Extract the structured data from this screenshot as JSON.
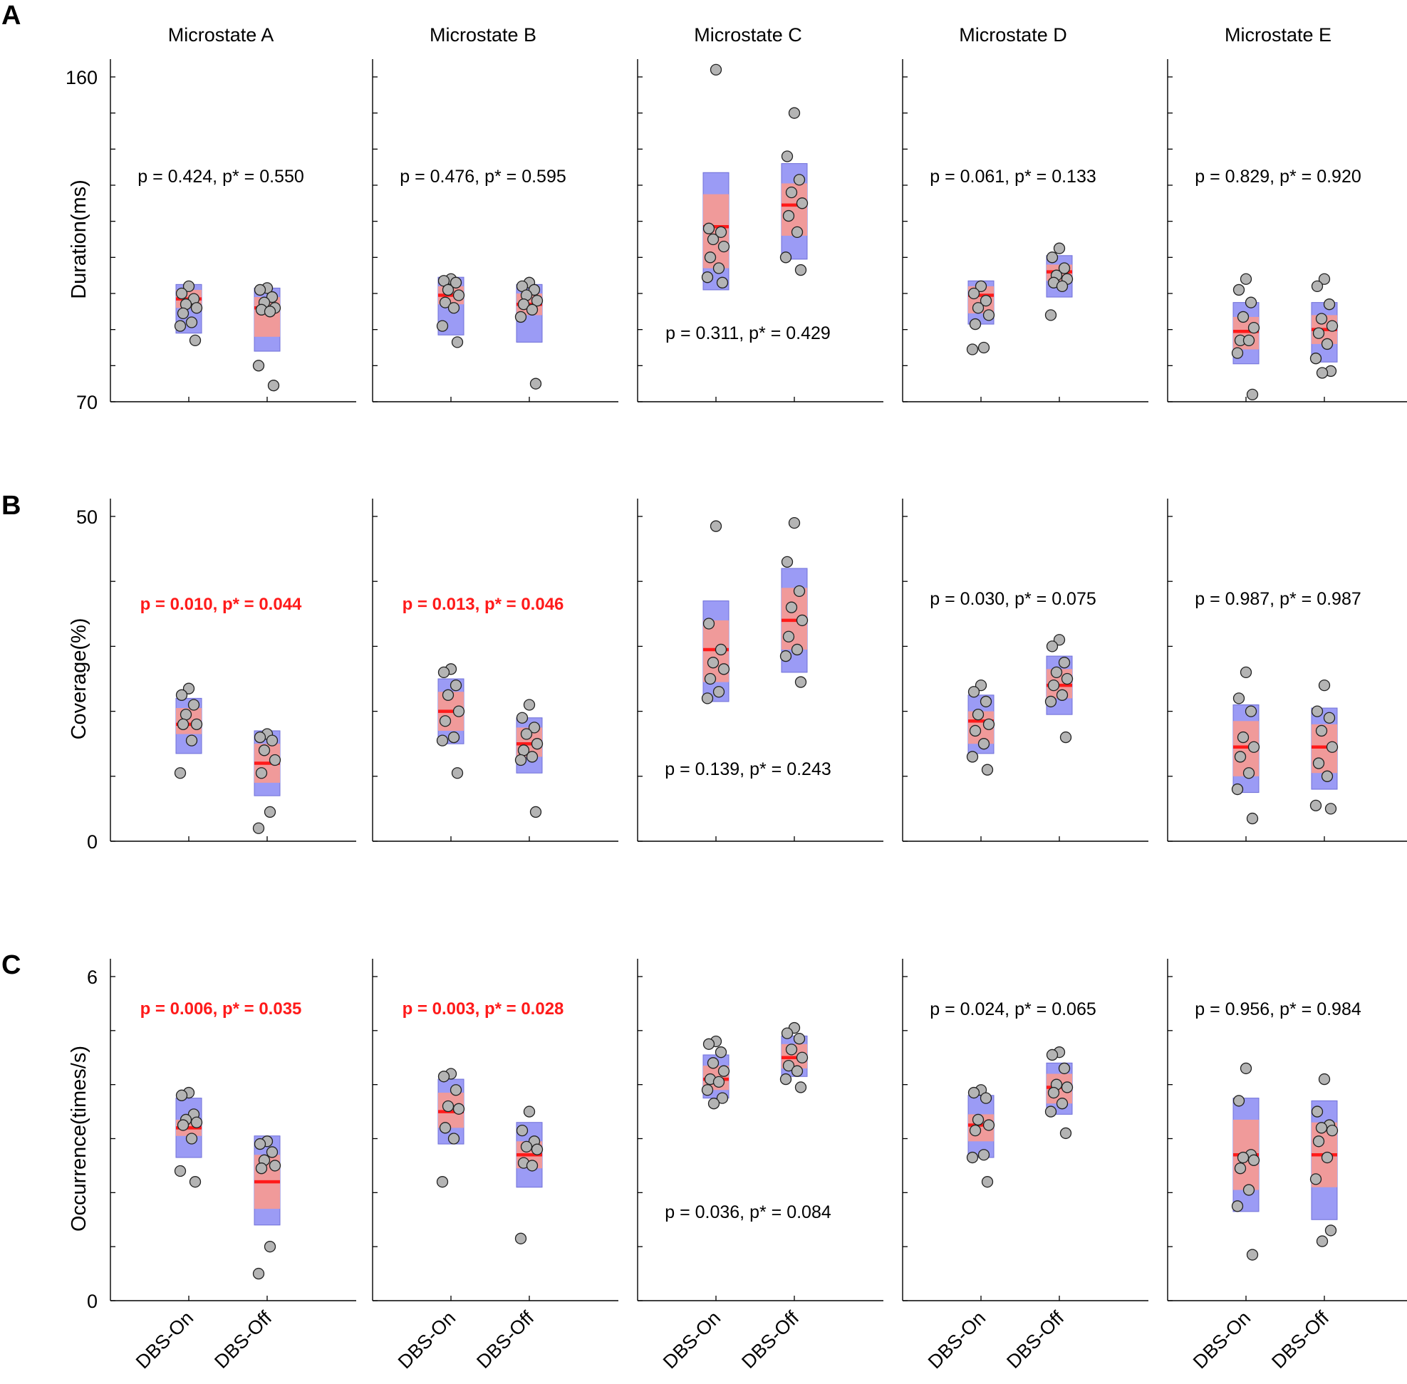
{
  "figure": {
    "column_titles": [
      "Microstate A",
      "Microstate B",
      "Microstate C",
      "Microstate D",
      "Microstate E"
    ],
    "group_labels": [
      "DBS-On",
      "DBS-Off"
    ],
    "colors": {
      "sd_band": "#9b9bf5",
      "ci_band": "#f09a9a",
      "mean_line": "#ff1a1a",
      "point_fill": "#b4b4b4",
      "significant_text": "#ff1a1a",
      "axis": "#000000"
    }
  },
  "chart_data": [
    {
      "type": "scatter",
      "panel": "A",
      "ylabel": "Duration(ms)",
      "ylim": [
        70,
        160
      ],
      "ytick_labels": [
        "70",
        "160"
      ],
      "ytick_count": 10,
      "xlabel": "",
      "microstates": [
        {
          "name": "Microstate A",
          "p_text": "p = 0.424, p* = 0.550",
          "significant": false,
          "p_pos": "upper",
          "groups": [
            {
              "label": "DBS-On",
              "mean": 98.5,
              "ci": [
                96,
                101
              ],
              "sd": [
                89,
                102.5
              ],
              "points": [
                102,
                100,
                98.5,
                97,
                96,
                94.5,
                92,
                91,
                87
              ]
            },
            {
              "label": "DBS-Off",
              "mean": 96,
              "ci": [
                88,
                99
              ],
              "sd": [
                84,
                101.5
              ],
              "points": [
                101.5,
                101,
                99,
                97.5,
                96,
                95.5,
                95,
                80,
                74.5
              ]
            }
          ]
        },
        {
          "name": "Microstate B",
          "p_text": "p = 0.476, p* = 0.595",
          "significant": false,
          "p_pos": "upper",
          "groups": [
            {
              "label": "DBS-On",
              "mean": 99.5,
              "ci": [
                97,
                102
              ],
              "sd": [
                88.5,
                104.5
              ],
              "points": [
                104,
                103.5,
                103,
                101,
                99.5,
                97.5,
                96,
                91,
                86.5
              ]
            },
            {
              "label": "DBS-Off",
              "mean": 97,
              "ci": [
                94,
                100
              ],
              "sd": [
                86.5,
                102.5
              ],
              "points": [
                103,
                102,
                101,
                99.5,
                98,
                97,
                95.5,
                93.5,
                75
              ]
            }
          ]
        },
        {
          "name": "Microstate C",
          "p_text": "p = 0.311, p* = 0.429",
          "significant": false,
          "p_pos": "lower",
          "groups": [
            {
              "label": "DBS-On",
              "mean": 118.5,
              "ci": [
                107,
                127.5
              ],
              "sd": [
                101,
                133.5
              ],
              "points": [
                162,
                118,
                117,
                115,
                113,
                110,
                107,
                104.5,
                103
              ]
            },
            {
              "label": "DBS-Off",
              "mean": 124.5,
              "ci": [
                116,
                130.5
              ],
              "sd": [
                109.5,
                136
              ],
              "points": [
                150,
                138,
                131.5,
                128,
                125,
                121.5,
                117,
                110,
                106.5
              ]
            }
          ]
        },
        {
          "name": "Microstate D",
          "p_text": "p = 0.061, p* = 0.133",
          "significant": false,
          "p_pos": "upper",
          "groups": [
            {
              "label": "DBS-On",
              "mean": 99.5,
              "ci": [
                94.5,
                102
              ],
              "sd": [
                91.5,
                103.5
              ],
              "points": [
                102,
                100,
                98,
                96,
                94,
                91.5,
                85,
                84.5
              ]
            },
            {
              "label": "DBS-Off",
              "mean": 106,
              "ci": [
                103.5,
                108
              ],
              "sd": [
                99,
                110.5
              ],
              "points": [
                112.5,
                110,
                107,
                105,
                104,
                103,
                102,
                94
              ]
            }
          ]
        },
        {
          "name": "Microstate E",
          "p_text": "p = 0.829, p* = 0.920",
          "significant": false,
          "p_pos": "upper",
          "groups": [
            {
              "label": "DBS-On",
              "mean": 89.5,
              "ci": [
                84.5,
                93.5
              ],
              "sd": [
                80.5,
                97.5
              ],
              "points": [
                104,
                101,
                97.5,
                93.5,
                90.5,
                87,
                87,
                83.5,
                72
              ]
            },
            {
              "label": "DBS-Off",
              "mean": 90,
              "ci": [
                86,
                94
              ],
              "sd": [
                81,
                97.5
              ],
              "points": [
                104,
                102,
                97,
                93,
                91,
                89,
                86,
                82,
                78.5,
                78
              ]
            }
          ]
        }
      ]
    },
    {
      "type": "scatter",
      "panel": "B",
      "ylabel": "Coverage(%)",
      "ylim": [
        0,
        50
      ],
      "ytick_labels": [
        "0",
        "50"
      ],
      "ytick_count": 6,
      "xlabel": "",
      "microstates": [
        {
          "name": "Microstate A",
          "p_text": "p = 0.010, p* = 0.044",
          "significant": true,
          "p_pos": "upper",
          "groups": [
            {
              "label": "DBS-On",
              "mean": 18,
              "ci": [
                16.5,
                20.5
              ],
              "sd": [
                13.5,
                22
              ],
              "points": [
                23.5,
                22.5,
                21,
                19.5,
                18,
                18,
                15.5,
                10.5
              ]
            },
            {
              "label": "DBS-Off",
              "mean": 12,
              "ci": [
                9,
                15
              ],
              "sd": [
                7,
                17
              ],
              "points": [
                16.5,
                16,
                15.5,
                14,
                12.5,
                10.5,
                4.5,
                2
              ]
            }
          ]
        },
        {
          "name": "Microstate B",
          "p_text": "p = 0.013, p* = 0.046",
          "significant": true,
          "p_pos": "upper",
          "groups": [
            {
              "label": "DBS-On",
              "mean": 20,
              "ci": [
                17,
                23
              ],
              "sd": [
                15,
                25
              ],
              "points": [
                26.5,
                26,
                24,
                22.5,
                20,
                18.5,
                16,
                15.5,
                10.5
              ]
            },
            {
              "label": "DBS-Off",
              "mean": 15,
              "ci": [
                13,
                17.5
              ],
              "sd": [
                10.5,
                19
              ],
              "points": [
                21,
                19,
                17.5,
                16.5,
                15,
                14,
                13,
                12.5,
                4.5
              ]
            }
          ]
        },
        {
          "name": "Microstate C",
          "p_text": "p = 0.139, p* = 0.243",
          "significant": false,
          "p_pos": "lower",
          "groups": [
            {
              "label": "DBS-On",
              "mean": 29.5,
              "ci": [
                24.5,
                34
              ],
              "sd": [
                21.5,
                37
              ],
              "points": [
                48.5,
                33.5,
                29.5,
                27.5,
                26.5,
                25,
                23,
                22
              ]
            },
            {
              "label": "DBS-Off",
              "mean": 34,
              "ci": [
                29.5,
                39
              ],
              "sd": [
                26,
                42
              ],
              "points": [
                49,
                43,
                38.5,
                36,
                34,
                31.5,
                29.5,
                28.5,
                24.5
              ]
            }
          ]
        },
        {
          "name": "Microstate D",
          "p_text": "p = 0.030, p* = 0.075",
          "significant": false,
          "p_pos": "upper",
          "groups": [
            {
              "label": "DBS-On",
              "mean": 18.5,
              "ci": [
                15,
                20
              ],
              "sd": [
                13.5,
                22.5
              ],
              "points": [
                24,
                23,
                21.5,
                19.5,
                18,
                17,
                15,
                13,
                11
              ]
            },
            {
              "label": "DBS-Off",
              "mean": 24,
              "ci": [
                22,
                26.5
              ],
              "sd": [
                19.5,
                28.5
              ],
              "points": [
                31,
                30,
                27.5,
                26,
                25,
                24,
                22.5,
                21.5,
                16
              ]
            }
          ]
        },
        {
          "name": "Microstate E",
          "p_text": "p = 0.987, p* = 0.987",
          "significant": false,
          "p_pos": "upper",
          "groups": [
            {
              "label": "DBS-On",
              "mean": 14.5,
              "ci": [
                10,
                18.5
              ],
              "sd": [
                7.5,
                21
              ],
              "points": [
                26,
                22,
                20,
                16,
                14.5,
                13,
                10.5,
                8,
                3.5
              ]
            },
            {
              "label": "DBS-Off",
              "mean": 14.5,
              "ci": [
                10.5,
                18
              ],
              "sd": [
                8,
                20.5
              ],
              "points": [
                24,
                20,
                19,
                17,
                14.5,
                12,
                10,
                5.5,
                5
              ]
            }
          ]
        }
      ]
    },
    {
      "type": "scatter",
      "panel": "C",
      "ylabel": "Occurrence(times/s)",
      "ylim": [
        0,
        6
      ],
      "ytick_labels": [
        "0",
        "6"
      ],
      "ytick_count": 7,
      "xlabel": "",
      "microstates": [
        {
          "name": "Microstate A",
          "p_text": "p = 0.006, p* = 0.035",
          "significant": true,
          "p_pos": "upper",
          "groups": [
            {
              "label": "DBS-On",
              "mean": 3.2,
              "ci": [
                3.05,
                3.35
              ],
              "sd": [
                2.65,
                3.75
              ],
              "points": [
                3.85,
                3.8,
                3.45,
                3.35,
                3.3,
                3.25,
                3.0,
                2.4,
                2.2
              ]
            },
            {
              "label": "DBS-Off",
              "mean": 2.2,
              "ci": [
                1.7,
                2.7
              ],
              "sd": [
                1.4,
                3.05
              ],
              "points": [
                2.95,
                2.9,
                2.75,
                2.6,
                2.5,
                2.45,
                1.0,
                0.5
              ]
            }
          ]
        },
        {
          "name": "Microstate B",
          "p_text": "p = 0.003, p* = 0.028",
          "significant": true,
          "p_pos": "upper",
          "groups": [
            {
              "label": "DBS-On",
              "mean": 3.5,
              "ci": [
                3.2,
                3.85
              ],
              "sd": [
                2.9,
                4.1
              ],
              "points": [
                4.2,
                4.15,
                3.9,
                3.6,
                3.55,
                3.2,
                3.0,
                2.2
              ]
            },
            {
              "label": "DBS-Off",
              "mean": 2.7,
              "ci": [
                2.45,
                2.95
              ],
              "sd": [
                2.1,
                3.3
              ],
              "points": [
                3.5,
                3.15,
                2.95,
                2.85,
                2.8,
                2.55,
                2.5,
                1.15
              ]
            }
          ]
        },
        {
          "name": "Microstate C",
          "p_text": "p = 0.036, p* = 0.084",
          "significant": false,
          "p_pos": "lower",
          "groups": [
            {
              "label": "DBS-On",
              "mean": 4.1,
              "ci": [
                3.9,
                4.35
              ],
              "sd": [
                3.75,
                4.55
              ],
              "points": [
                4.8,
                4.75,
                4.6,
                4.4,
                4.25,
                4.1,
                4.05,
                3.9,
                3.75,
                3.65
              ]
            },
            {
              "label": "DBS-Off",
              "mean": 4.5,
              "ci": [
                4.3,
                4.75
              ],
              "sd": [
                4.15,
                4.9
              ],
              "points": [
                5.05,
                4.95,
                4.85,
                4.65,
                4.5,
                4.35,
                4.25,
                4.1,
                3.95
              ]
            }
          ]
        },
        {
          "name": "Microstate D",
          "p_text": "p = 0.024, p* = 0.065",
          "significant": false,
          "p_pos": "upper",
          "groups": [
            {
              "label": "DBS-On",
              "mean": 3.25,
              "ci": [
                2.95,
                3.45
              ],
              "sd": [
                2.65,
                3.8
              ],
              "points": [
                3.9,
                3.85,
                3.75,
                3.35,
                3.25,
                3.15,
                2.7,
                2.65,
                2.2
              ]
            },
            {
              "label": "DBS-Off",
              "mean": 3.95,
              "ci": [
                3.65,
                4.2
              ],
              "sd": [
                3.45,
                4.4
              ],
              "points": [
                4.6,
                4.55,
                4.3,
                4.0,
                3.95,
                3.85,
                3.65,
                3.5,
                3.1
              ]
            }
          ]
        },
        {
          "name": "Microstate E",
          "p_text": "p = 0.956, p* = 0.984",
          "significant": false,
          "p_pos": "upper",
          "groups": [
            {
              "label": "DBS-On",
              "mean": 2.7,
              "ci": [
                2.05,
                3.35
              ],
              "sd": [
                1.65,
                3.75
              ],
              "points": [
                4.3,
                3.7,
                2.7,
                2.65,
                2.6,
                2.45,
                2.05,
                1.75,
                0.85
              ]
            },
            {
              "label": "DBS-Off",
              "mean": 2.7,
              "ci": [
                2.1,
                3.3
              ],
              "sd": [
                1.5,
                3.7
              ],
              "points": [
                4.1,
                3.5,
                3.25,
                3.2,
                3.15,
                2.95,
                2.65,
                2.25,
                1.3,
                1.1
              ]
            }
          ]
        }
      ]
    }
  ]
}
